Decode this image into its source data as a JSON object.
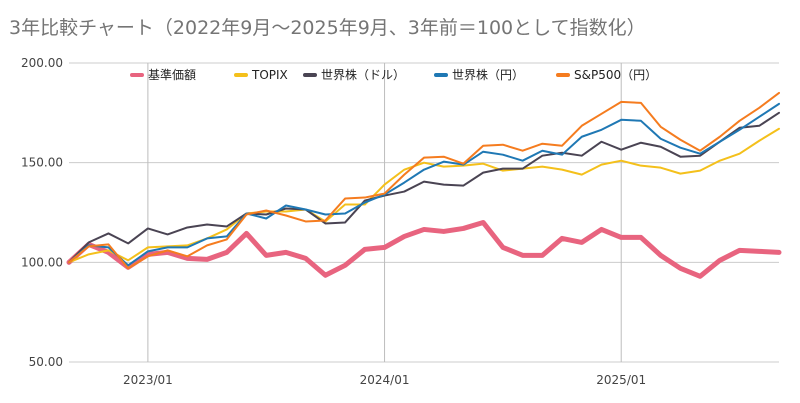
{
  "chart_data": {
    "type": "line",
    "title": "3年比較チャート（2022年9月～2025年9月、3年前＝100として指数化）",
    "xlabel": "",
    "ylabel": "",
    "ylim": [
      50,
      200
    ],
    "y_ticks": [
      "50.00",
      "100.00",
      "150.00",
      "200.00"
    ],
    "x_ticks": [
      "2023/01",
      "2024/01",
      "2025/01"
    ],
    "grid": true,
    "legend_position": "top",
    "x": [
      "2022/09",
      "2022/10",
      "2022/11",
      "2022/12",
      "2023/01",
      "2023/02",
      "2023/03",
      "2023/04",
      "2023/05",
      "2023/06",
      "2023/07",
      "2023/08",
      "2023/09",
      "2023/10",
      "2023/11",
      "2023/12",
      "2024/01",
      "2024/02",
      "2024/03",
      "2024/04",
      "2024/05",
      "2024/06",
      "2024/07",
      "2024/08",
      "2024/09",
      "2024/10",
      "2024/11",
      "2024/12",
      "2025/01",
      "2025/02",
      "2025/03",
      "2025/04",
      "2025/05",
      "2025/06",
      "2025/07",
      "2025/08",
      "2025/09"
    ],
    "series": [
      {
        "name": "基準価額",
        "color": "#e8647f",
        "width": 5,
        "values": [
          100,
          109,
          105,
          97.5,
          104,
          105,
          102,
          101.5,
          105,
          114.5,
          103.5,
          105,
          102,
          93.5,
          98.5,
          106.5,
          107.5,
          113,
          116.5,
          115.5,
          117,
          120,
          107.5,
          103.5,
          103.5,
          112,
          110,
          116.5,
          112.5,
          112.5,
          103.5,
          97,
          93,
          101,
          106,
          105.5,
          105
        ]
      },
      {
        "name": "TOPIX",
        "color": "#f4c01b",
        "width": 2,
        "values": [
          100,
          104,
          106,
          101,
          107.5,
          108,
          108.5,
          112,
          116.5,
          124.5,
          125.5,
          125.5,
          126.5,
          120.5,
          129,
          129,
          139,
          146.5,
          150,
          148,
          148.5,
          149.5,
          146,
          147,
          148,
          146.5,
          144,
          149,
          151,
          148.5,
          147.5,
          144.5,
          146,
          151,
          154.5,
          161,
          167
        ]
      },
      {
        "name": "世界株（ドル）",
        "color": "#4a4453",
        "width": 2,
        "values": [
          100,
          110,
          114.5,
          109.5,
          117,
          114,
          117.5,
          119,
          118,
          124.5,
          124,
          127,
          126.5,
          119.5,
          120,
          131,
          133.5,
          135.5,
          140.5,
          139,
          138.5,
          145,
          147,
          147,
          153.5,
          155,
          153.5,
          160.5,
          156.5,
          160,
          158,
          153,
          153.5,
          160.5,
          167.5,
          168.5,
          175
        ]
      },
      {
        "name": "世界株（円）",
        "color": "#1f78b4",
        "width": 2,
        "values": [
          100,
          108.5,
          107.5,
          98.5,
          105.5,
          107.5,
          107.5,
          112,
          113,
          124.5,
          122,
          128.5,
          126.5,
          124,
          124.5,
          130,
          134,
          140,
          146.5,
          150.5,
          149,
          155.5,
          154,
          151,
          156,
          154,
          163,
          166.5,
          171.5,
          171,
          162,
          157.5,
          154.5,
          160.5,
          166.5,
          173,
          179.5
        ]
      },
      {
        "name": "S&P500（円）",
        "color": "#f57c1f",
        "width": 2,
        "values": [
          100,
          108,
          109,
          97,
          103,
          106,
          103,
          108.5,
          111.5,
          124,
          126,
          123.5,
          120.5,
          121,
          132,
          132.5,
          134.5,
          144,
          152.5,
          153,
          149.5,
          158.5,
          159,
          156,
          159.5,
          158.5,
          168.5,
          174.5,
          180.5,
          180,
          168,
          161.5,
          156,
          163,
          171,
          177.5,
          185
        ]
      }
    ]
  }
}
